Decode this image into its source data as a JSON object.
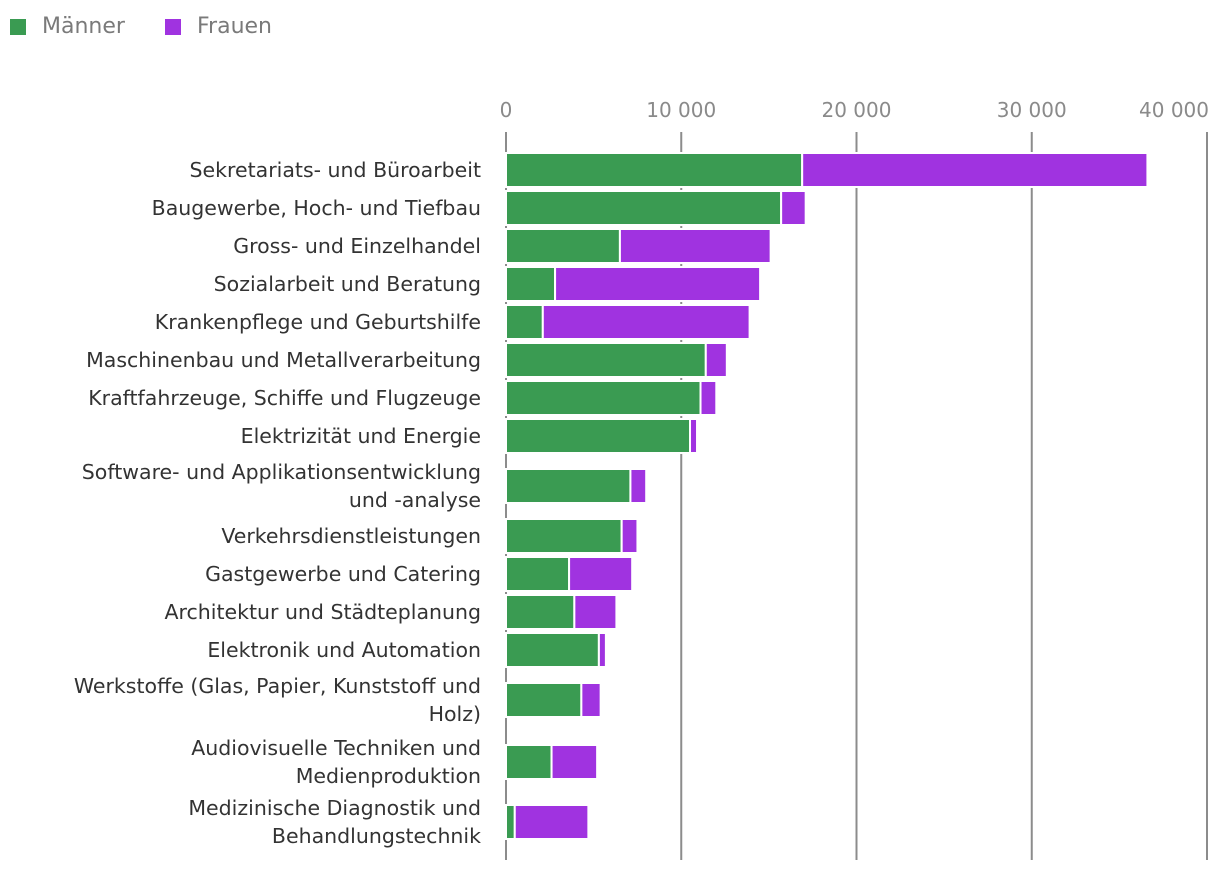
{
  "chart_data": {
    "type": "bar",
    "orientation": "horizontal",
    "stacked": true,
    "title": "",
    "xlabel": "",
    "ylabel": "",
    "xlim": [
      0,
      40000
    ],
    "x_ticks": [
      0,
      10000,
      20000,
      30000,
      40000
    ],
    "x_tick_labels": [
      "0",
      "10 000",
      "20 000",
      "30 000",
      "40 000"
    ],
    "grid": true,
    "legend_position": "top-left",
    "categories": [
      [
        "Sekretariats- und Büroarbeit"
      ],
      [
        "Baugewerbe, Hoch- und Tiefbau"
      ],
      [
        "Gross- und Einzelhandel"
      ],
      [
        "Sozialarbeit und Beratung"
      ],
      [
        "Krankenpflege und Geburtshilfe"
      ],
      [
        "Maschinenbau und Metallverarbeitung"
      ],
      [
        "Kraftfahrzeuge, Schiffe und Flugzeuge"
      ],
      [
        "Elektrizität und Energie"
      ],
      [
        "Software- und Applikationsentwicklung",
        "und -analyse"
      ],
      [
        "Verkehrsdienstleistungen"
      ],
      [
        "Gastgewerbe und Catering"
      ],
      [
        "Architektur und Städteplanung"
      ],
      [
        "Elektronik und Automation"
      ],
      [
        "Werkstoffe (Glas, Papier, Kunststoff und",
        "Holz)"
      ],
      [
        "Audiovisuelle Techniken und",
        "Medienproduktion"
      ],
      [
        "Medizinische Diagnostik und",
        "Behandlungstechnik"
      ]
    ],
    "series": [
      {
        "name": "Männer",
        "color": "#3a9b52",
        "values": [
          16900,
          15700,
          6500,
          2800,
          2100,
          11400,
          11100,
          10500,
          7100,
          6600,
          3600,
          3900,
          5300,
          4300,
          2600,
          500
        ]
      },
      {
        "name": "Frauen",
        "color": "#a033e0",
        "values": [
          19700,
          1400,
          8600,
          11700,
          11800,
          1200,
          900,
          400,
          900,
          900,
          3600,
          2400,
          400,
          1100,
          2600,
          4200
        ]
      }
    ]
  }
}
